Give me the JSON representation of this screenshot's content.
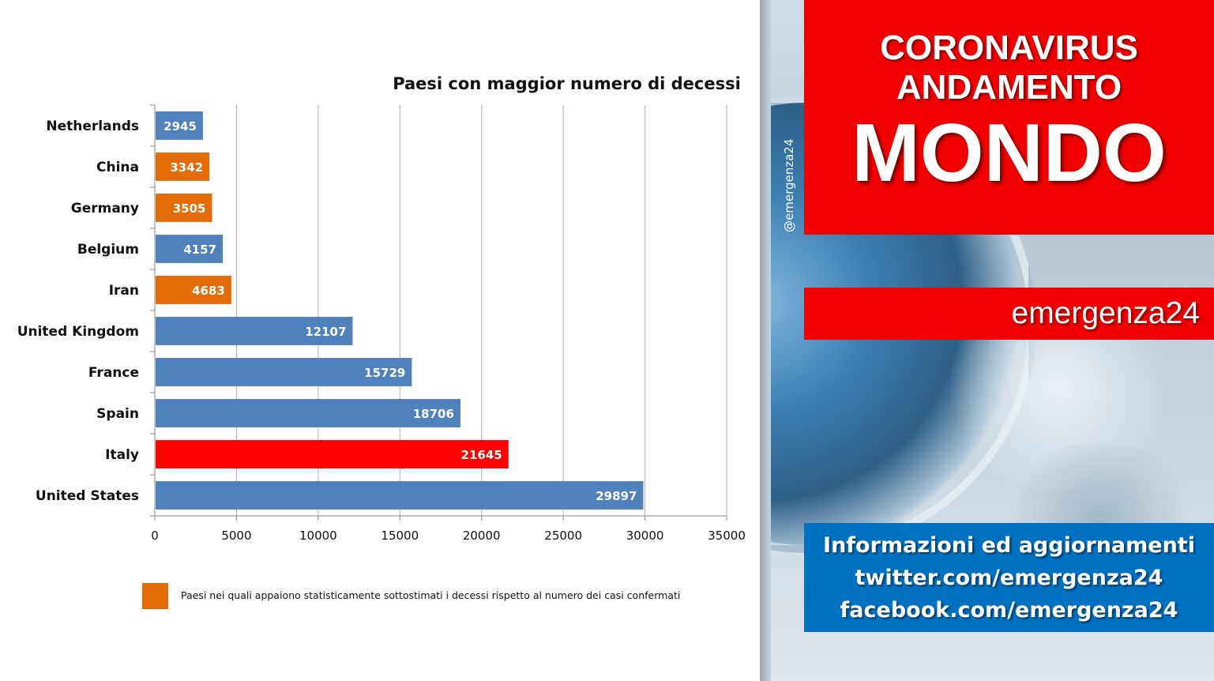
{
  "banner": {
    "title_line1": "CORONAVIRUS",
    "title_line2": "ANDAMENTO",
    "title_line3": "MONDO",
    "handle": "@emergenza24",
    "brand": "emergenza24",
    "info_lines": [
      "Informazioni ed aggiornamenti",
      "twitter.com/emergenza24",
      "facebook.com/emergenza24"
    ]
  },
  "colors": {
    "default_bar": "#4F81BD",
    "underestimated_bar": "#E36C09",
    "highlight_bar": "#FF0000",
    "banner_red": "#F20000",
    "banner_blue": "#0070C0"
  },
  "chart_data": {
    "type": "bar",
    "orientation": "horizontal",
    "title": "Paesi con maggior numero di decessi",
    "categories": [
      "Netherlands",
      "China",
      "Germany",
      "Belgium",
      "Iran",
      "United Kingdom",
      "France",
      "Spain",
      "Italy",
      "United States"
    ],
    "values": [
      2945,
      3342,
      3505,
      4157,
      4683,
      12107,
      15729,
      18706,
      21645,
      29897
    ],
    "bar_color_groups": [
      "default",
      "underestimated",
      "underestimated",
      "default",
      "underestimated",
      "default",
      "default",
      "default",
      "highlight",
      "default"
    ],
    "data_labels": [
      "2945",
      "3342",
      "3505",
      "4157",
      "4683",
      "12107",
      "15729",
      "18706",
      "21645",
      "29897"
    ],
    "xlim": [
      0,
      35000
    ],
    "x_ticks": [
      "0",
      "5000",
      "10000",
      "15000",
      "20000",
      "25000",
      "30000",
      "35000"
    ],
    "grid": "vertical",
    "legend": {
      "label": "Paesi nei quali appaiono statisticamente sottostimati i decessi rispetto al numero dei casi confermati",
      "color_group": "underestimated",
      "placement": "bottom"
    }
  }
}
